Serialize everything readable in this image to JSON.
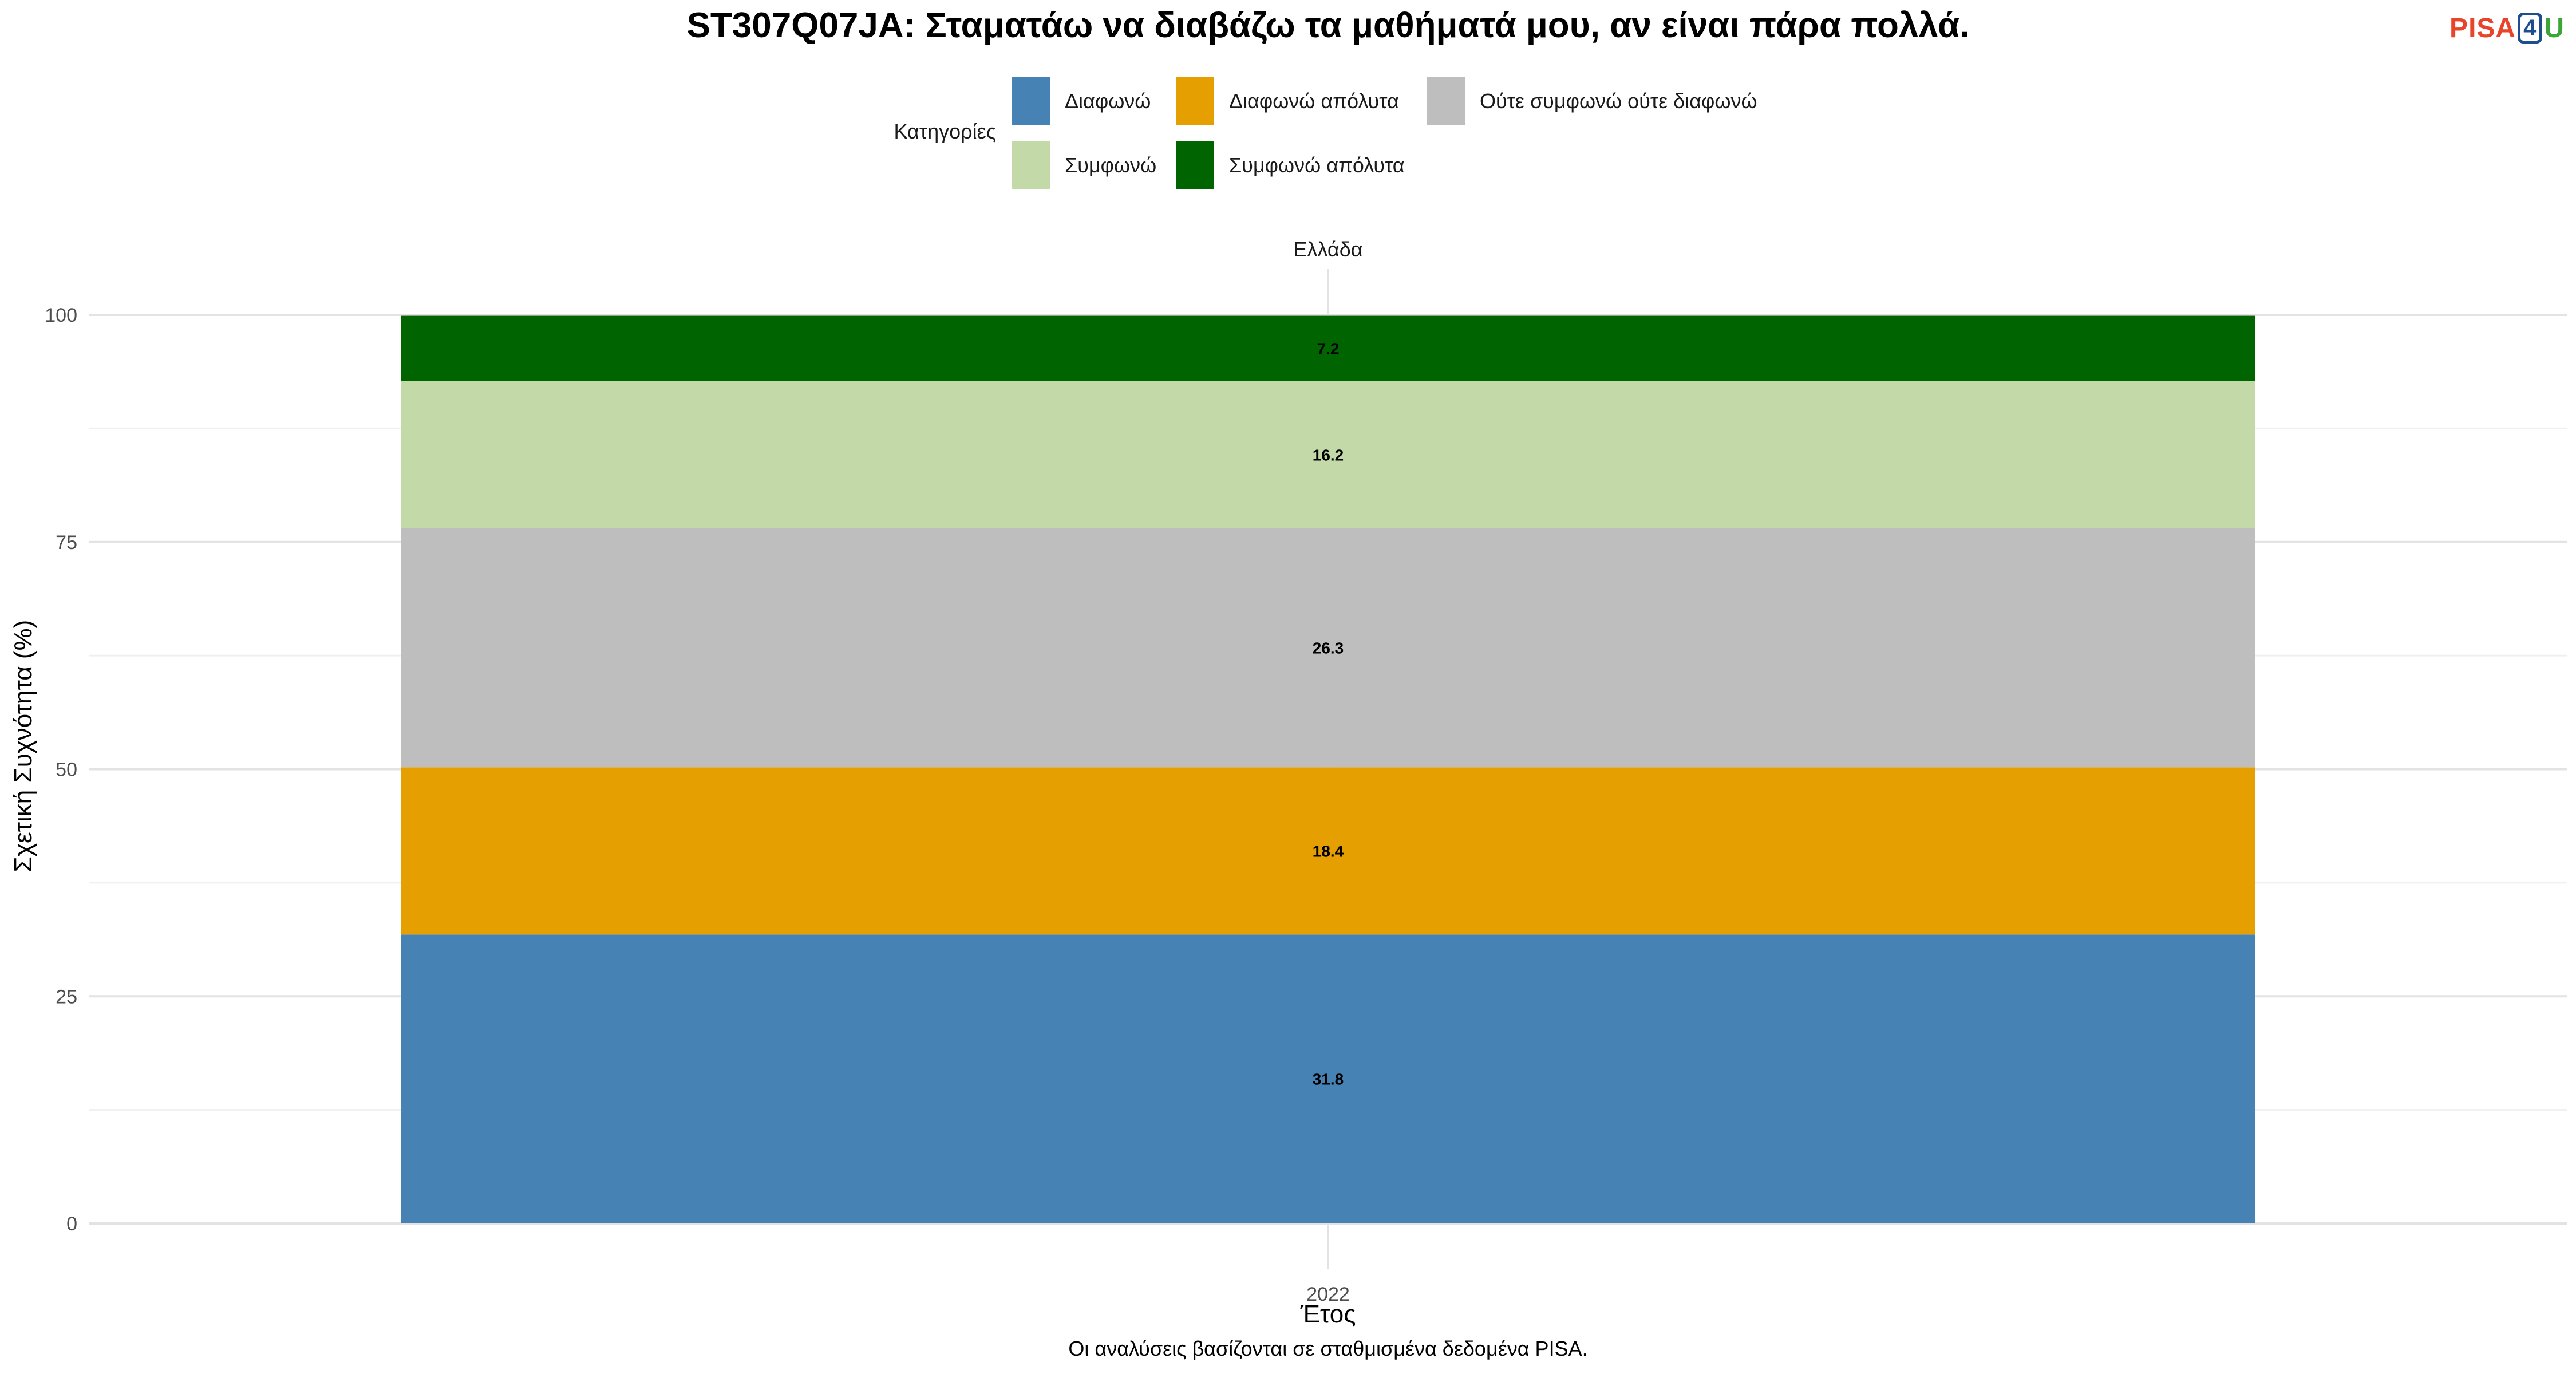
{
  "logo": {
    "pisa": "PISA",
    "four": "4",
    "u": "U"
  },
  "chart_data": {
    "type": "bar",
    "stacked": true,
    "title": "ST307Q07JA: Σταματάω να διαβάζω τα μαθήματά μου, αν είναι πάρα πολλά.",
    "facet_label": "Ελλάδα",
    "xlabel": "Έτος",
    "ylabel": "Σχετική Συχνότητα (%)",
    "caption": "Οι αναλύσεις βασίζονται σε σταθμισμένα δεδομένα PISA.",
    "legend_title": "Κατηγορίες",
    "legend_position": "top",
    "categories": [
      "2022"
    ],
    "ylim": [
      0,
      100
    ],
    "yticks": [
      0,
      25,
      50,
      75,
      100
    ],
    "grid": true,
    "legend_order": [
      "Διαφωνώ",
      "Διαφωνώ απόλυτα",
      "Ούτε συμφωνώ ούτε διαφωνώ",
      "Συμφωνώ",
      "Συμφωνώ απόλυτα"
    ],
    "series": [
      {
        "name": "Διαφωνώ",
        "color": "#4682B4",
        "values": [
          31.8
        ]
      },
      {
        "name": "Διαφωνώ απόλυτα",
        "color": "#E69F00",
        "values": [
          18.4
        ]
      },
      {
        "name": "Ούτε συμφωνώ ούτε διαφωνώ",
        "color": "#BEBEBE",
        "values": [
          26.3
        ]
      },
      {
        "name": "Συμφωνώ",
        "color": "#C3D9A8",
        "values": [
          16.2
        ]
      },
      {
        "name": "Συμφωνώ απόλυτα",
        "color": "#006400",
        "values": [
          7.2
        ]
      }
    ]
  }
}
